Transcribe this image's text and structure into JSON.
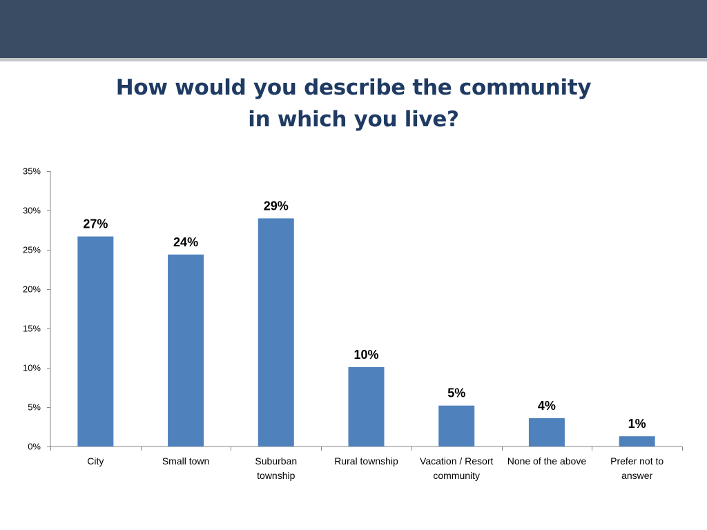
{
  "header": {
    "bar_color": "#3a4c63",
    "accent_line_color": "#c4c8cc"
  },
  "chart_data": {
    "type": "bar",
    "title": [
      "How would you describe the community",
      "in which you live?"
    ],
    "categories": [
      [
        "City"
      ],
      [
        "Small town"
      ],
      [
        "Suburban",
        "township"
      ],
      [
        "Rural township"
      ],
      [
        "Vacation / Resort",
        "community"
      ],
      [
        "None of the above"
      ],
      [
        "Prefer not to",
        "answer"
      ]
    ],
    "values": [
      26.7,
      24.4,
      29.0,
      10.1,
      5.2,
      3.6,
      1.3
    ],
    "data_labels": [
      "27%",
      "24%",
      "29%",
      "10%",
      "5%",
      "4%",
      "1%"
    ],
    "ylim": [
      0,
      35
    ],
    "yticks": [
      0,
      5,
      10,
      15,
      20,
      25,
      30,
      35
    ],
    "ytick_labels": [
      "0%",
      "5%",
      "10%",
      "15%",
      "20%",
      "25%",
      "30%",
      "35%"
    ],
    "xlabel": "",
    "ylabel": "",
    "grid": false,
    "legend": "none",
    "bar_color": "#4f81bd"
  }
}
